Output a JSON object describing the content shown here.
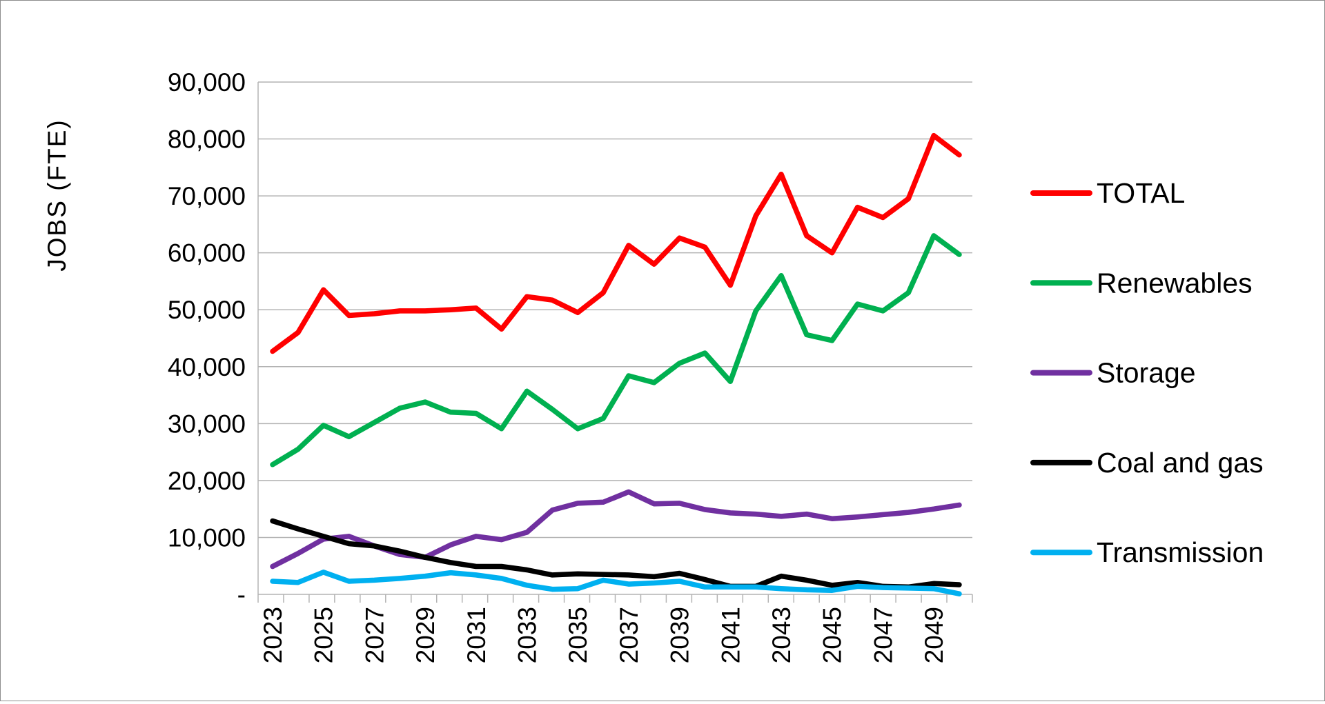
{
  "chart_data": {
    "type": "line",
    "title": "",
    "xlabel": "",
    "ylabel": "JOBS (FTE)",
    "ylim": [
      0,
      90000
    ],
    "yticks": [
      0,
      10000,
      20000,
      30000,
      40000,
      50000,
      60000,
      70000,
      80000,
      90000
    ],
    "ytick_labels": [
      "-",
      "10,000",
      "20,000",
      "30,000",
      "40,000",
      "50,000",
      "60,000",
      "70,000",
      "80,000",
      "90,000"
    ],
    "x": [
      2023,
      2024,
      2025,
      2026,
      2027,
      2028,
      2029,
      2030,
      2031,
      2032,
      2033,
      2034,
      2035,
      2036,
      2037,
      2038,
      2039,
      2040,
      2041,
      2042,
      2043,
      2044,
      2045,
      2046,
      2047,
      2048,
      2049,
      2050
    ],
    "xtick_labels": [
      "2023",
      "2025",
      "2027",
      "2029",
      "2031",
      "2033",
      "2035",
      "2037",
      "2039",
      "2041",
      "2043",
      "2045",
      "2047",
      "2049"
    ],
    "grid": "horizontal",
    "legend_position": "right",
    "series": [
      {
        "name": "TOTAL",
        "color": "#ff0000",
        "values": [
          42700,
          46000,
          53500,
          49000,
          49300,
          49800,
          49800,
          50000,
          50300,
          46600,
          52300,
          51700,
          49500,
          53000,
          61300,
          58000,
          62600,
          61000,
          54300,
          66500,
          73800,
          63000,
          60000,
          68000,
          66200,
          69500,
          80600,
          77200
        ]
      },
      {
        "name": "Renewables",
        "color": "#00b050",
        "values": [
          22800,
          25500,
          29700,
          27700,
          30200,
          32700,
          33800,
          32000,
          31800,
          29100,
          35700,
          32500,
          29100,
          30900,
          38400,
          37200,
          40600,
          42400,
          37400,
          49800,
          56000,
          45600,
          44600,
          51000,
          49800,
          53000,
          63000,
          59700
        ]
      },
      {
        "name": "Storage",
        "color": "#7030a0",
        "values": [
          4900,
          7200,
          9700,
          10200,
          8500,
          7000,
          6500,
          8700,
          10200,
          9600,
          10900,
          14800,
          16000,
          16200,
          18000,
          15900,
          16000,
          14900,
          14300,
          14100,
          13700,
          14100,
          13300,
          13600,
          14000,
          14400,
          15000,
          15700
        ]
      },
      {
        "name": "Coal and gas",
        "color": "#000000",
        "values": [
          12900,
          11500,
          10200,
          8900,
          8500,
          7600,
          6500,
          5600,
          4900,
          4900,
          4300,
          3400,
          3600,
          3500,
          3400,
          3100,
          3700,
          2600,
          1400,
          1400,
          3200,
          2500,
          1600,
          2100,
          1400,
          1300,
          1900,
          1700
        ]
      },
      {
        "name": "Transmission",
        "color": "#00b0f0",
        "values": [
          2300,
          2100,
          3900,
          2300,
          2500,
          2800,
          3200,
          3800,
          3400,
          2800,
          1600,
          900,
          1000,
          2500,
          1800,
          2000,
          2300,
          1300,
          1300,
          1300,
          1000,
          800,
          700,
          1400,
          1200,
          1100,
          1000,
          100
        ]
      }
    ]
  }
}
